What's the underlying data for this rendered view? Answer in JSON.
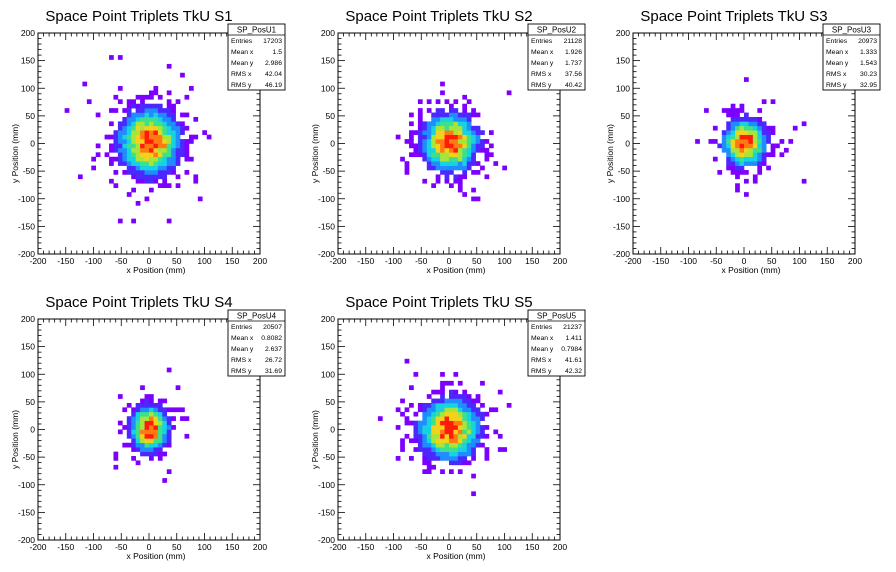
{
  "chart_data": [
    {
      "type": "heatmap",
      "title": "Space Point Triplets TkU S1",
      "xlabel": "x Position (mm)",
      "ylabel": "y Position (mm)",
      "xlim": [
        -200,
        200
      ],
      "ylim": [
        -200,
        200
      ],
      "xticks": [
        -200,
        -150,
        -100,
        -50,
        0,
        50,
        100,
        150,
        200
      ],
      "yticks": [
        -200,
        -150,
        -100,
        -50,
        0,
        50,
        100,
        150,
        200
      ],
      "stats": {
        "name": "SP_PosU1",
        "rows": [
          {
            "label": "Entries",
            "value": "17203"
          },
          {
            "label": "Mean x",
            "value": "1.5"
          },
          {
            "label": "Mean y",
            "value": "2.986"
          },
          {
            "label": "RMS x",
            "value": "42.04"
          },
          {
            "label": "RMS y",
            "value": "46.19"
          }
        ]
      },
      "mean_x": 1.5,
      "mean_y": 2.986,
      "rms_x": 42.04,
      "rms_y": 46.19
    },
    {
      "type": "heatmap",
      "title": "Space Point Triplets TkU S2",
      "xlabel": "x Position (mm)",
      "ylabel": "y Position (mm)",
      "xlim": [
        -200,
        200
      ],
      "ylim": [
        -200,
        200
      ],
      "xticks": [
        -200,
        -150,
        -100,
        -50,
        0,
        50,
        100,
        150,
        200
      ],
      "yticks": [
        -200,
        -150,
        -100,
        -50,
        0,
        50,
        100,
        150,
        200
      ],
      "stats": {
        "name": "SP_PosU2",
        "rows": [
          {
            "label": "Entries",
            "value": "21128"
          },
          {
            "label": "Mean x",
            "value": "1.926"
          },
          {
            "label": "Mean y",
            "value": "1.737"
          },
          {
            "label": "RMS x",
            "value": "37.56"
          },
          {
            "label": "RMS y",
            "value": "40.42"
          }
        ]
      },
      "mean_x": 1.926,
      "mean_y": 1.737,
      "rms_x": 37.56,
      "rms_y": 40.42
    },
    {
      "type": "heatmap",
      "title": "Space Point Triplets TkU S3",
      "xlabel": "x Position (mm)",
      "ylabel": "y Position (mm)",
      "xlim": [
        -200,
        200
      ],
      "ylim": [
        -200,
        200
      ],
      "xticks": [
        -200,
        -150,
        -100,
        -50,
        0,
        50,
        100,
        150,
        200
      ],
      "yticks": [
        -200,
        -150,
        -100,
        -50,
        0,
        50,
        100,
        150,
        200
      ],
      "stats": {
        "name": "SP_PosU3",
        "rows": [
          {
            "label": "Entries",
            "value": "20973"
          },
          {
            "label": "Mean x",
            "value": "1.333"
          },
          {
            "label": "Mean y",
            "value": "1.543"
          },
          {
            "label": "RMS x",
            "value": "30.23"
          },
          {
            "label": "RMS y",
            "value": "32.95"
          }
        ]
      },
      "mean_x": 1.333,
      "mean_y": 1.543,
      "rms_x": 30.23,
      "rms_y": 32.95
    },
    {
      "type": "heatmap",
      "title": "Space Point Triplets TkU S4",
      "xlabel": "x Position (mm)",
      "ylabel": "y Position (mm)",
      "xlim": [
        -200,
        200
      ],
      "ylim": [
        -200,
        200
      ],
      "xticks": [
        -200,
        -150,
        -100,
        -50,
        0,
        50,
        100,
        150,
        200
      ],
      "yticks": [
        -200,
        -150,
        -100,
        -50,
        0,
        50,
        100,
        150,
        200
      ],
      "stats": {
        "name": "SP_PosU4",
        "rows": [
          {
            "label": "Entries",
            "value": "20507"
          },
          {
            "label": "Mean x",
            "value": "0.8082"
          },
          {
            "label": "Mean y",
            "value": "2.637"
          },
          {
            "label": "RMS x",
            "value": "26.72"
          },
          {
            "label": "RMS y",
            "value": "31.69"
          }
        ]
      },
      "mean_x": 0.8082,
      "mean_y": 2.637,
      "rms_x": 26.72,
      "rms_y": 31.69
    },
    {
      "type": "heatmap",
      "title": "Space Point Triplets TkU S5",
      "xlabel": "x Position (mm)",
      "ylabel": "y Position (mm)",
      "xlim": [
        -200,
        200
      ],
      "ylim": [
        -200,
        200
      ],
      "xticks": [
        -200,
        -150,
        -100,
        -50,
        0,
        50,
        100,
        150,
        200
      ],
      "yticks": [
        -200,
        -150,
        -100,
        -50,
        0,
        50,
        100,
        150,
        200
      ],
      "stats": {
        "name": "SP_PosU5",
        "rows": [
          {
            "label": "Entries",
            "value": "21237"
          },
          {
            "label": "Mean x",
            "value": "1.411"
          },
          {
            "label": "Mean y",
            "value": "0.7984"
          },
          {
            "label": "RMS x",
            "value": "41.61"
          },
          {
            "label": "RMS y",
            "value": "42.32"
          }
        ]
      },
      "mean_x": 1.411,
      "mean_y": 0.7984,
      "rms_x": 41.61,
      "rms_y": 42.32
    }
  ],
  "colors": {
    "palette": [
      "#7b00ff",
      "#4a28ff",
      "#1f8cff",
      "#17d2e0",
      "#3fe08a",
      "#a6e63a",
      "#f2d21a",
      "#ff7a10",
      "#ff1a0a"
    ]
  }
}
